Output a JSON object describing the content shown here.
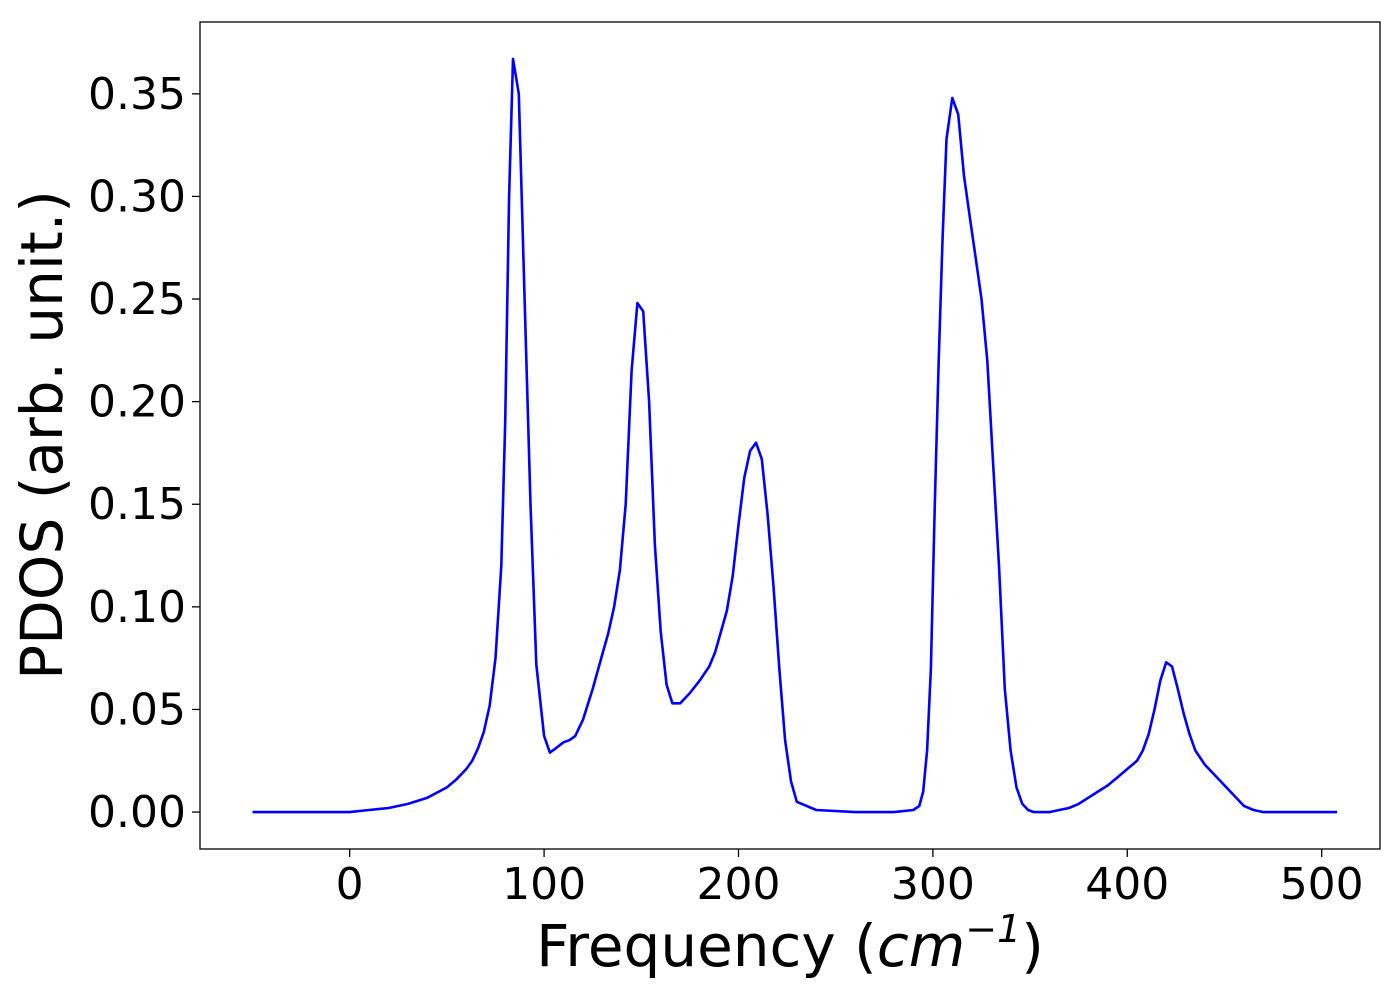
{
  "chart_data": {
    "type": "line",
    "title": "",
    "xlabel": "Frequency (",
    "xlabel_math": "cm",
    "xlabel_exp": "−1",
    "xlabel_close": ")",
    "ylabel": "PDOS (arb. unit.)",
    "xlim": [
      -77,
      530
    ],
    "ylim": [
      -0.018,
      0.385
    ],
    "xticks": [
      0,
      100,
      200,
      300,
      400,
      500
    ],
    "xtick_labels": [
      "0",
      "100",
      "200",
      "300",
      "400",
      "500"
    ],
    "yticks": [
      0.0,
      0.05,
      0.1,
      0.15,
      0.2,
      0.25,
      0.3,
      0.35
    ],
    "ytick_labels": [
      "0.00",
      "0.05",
      "0.10",
      "0.15",
      "0.20",
      "0.25",
      "0.30",
      "0.35"
    ],
    "grid": false,
    "legend": false,
    "series": [
      {
        "color": "#0000ff",
        "x": [
          -50,
          -20,
          0,
          10,
          20,
          30,
          40,
          50,
          55,
          60,
          63,
          66,
          69,
          72,
          75,
          78,
          80,
          82,
          84,
          87,
          90,
          93,
          96,
          100,
          103,
          106,
          110,
          113,
          116,
          120,
          125,
          130,
          133,
          136,
          139,
          142,
          145,
          148,
          151,
          154,
          157,
          160,
          163,
          166,
          170,
          175,
          180,
          185,
          188,
          191,
          194,
          197,
          200,
          203,
          206,
          209,
          212,
          215,
          218,
          221,
          224,
          227,
          230,
          240,
          260,
          280,
          290,
          293,
          295,
          297,
          299,
          301,
          303,
          305,
          307,
          310,
          313,
          316,
          319,
          322,
          325,
          328,
          331,
          334,
          337,
          340,
          343,
          346,
          349,
          352,
          355,
          360,
          365,
          370,
          375,
          380,
          385,
          390,
          395,
          400,
          405,
          408,
          411,
          414,
          417,
          420,
          423,
          426,
          429,
          432,
          435,
          440,
          445,
          450,
          455,
          460,
          465,
          470,
          480,
          500,
          508
        ],
        "y": [
          0.0,
          0.0,
          0.0,
          0.001,
          0.002,
          0.004,
          0.007,
          0.012,
          0.016,
          0.021,
          0.025,
          0.031,
          0.039,
          0.052,
          0.075,
          0.12,
          0.19,
          0.3,
          0.367,
          0.35,
          0.25,
          0.15,
          0.072,
          0.037,
          0.029,
          0.031,
          0.034,
          0.035,
          0.037,
          0.045,
          0.06,
          0.077,
          0.087,
          0.1,
          0.118,
          0.15,
          0.215,
          0.248,
          0.244,
          0.2,
          0.13,
          0.088,
          0.062,
          0.053,
          0.053,
          0.058,
          0.064,
          0.071,
          0.078,
          0.088,
          0.098,
          0.115,
          0.14,
          0.163,
          0.176,
          0.18,
          0.172,
          0.145,
          0.11,
          0.07,
          0.035,
          0.015,
          0.005,
          0.001,
          0.0,
          0.0,
          0.001,
          0.003,
          0.01,
          0.03,
          0.07,
          0.15,
          0.22,
          0.28,
          0.328,
          0.348,
          0.34,
          0.31,
          0.29,
          0.27,
          0.25,
          0.22,
          0.17,
          0.12,
          0.06,
          0.03,
          0.012,
          0.004,
          0.001,
          0.0,
          0.0,
          0.0,
          0.001,
          0.002,
          0.004,
          0.007,
          0.01,
          0.013,
          0.017,
          0.021,
          0.025,
          0.03,
          0.038,
          0.05,
          0.064,
          0.073,
          0.071,
          0.06,
          0.048,
          0.038,
          0.03,
          0.023,
          0.018,
          0.013,
          0.008,
          0.003,
          0.001,
          0.0,
          0.0,
          0.0,
          0.0
        ]
      }
    ]
  }
}
